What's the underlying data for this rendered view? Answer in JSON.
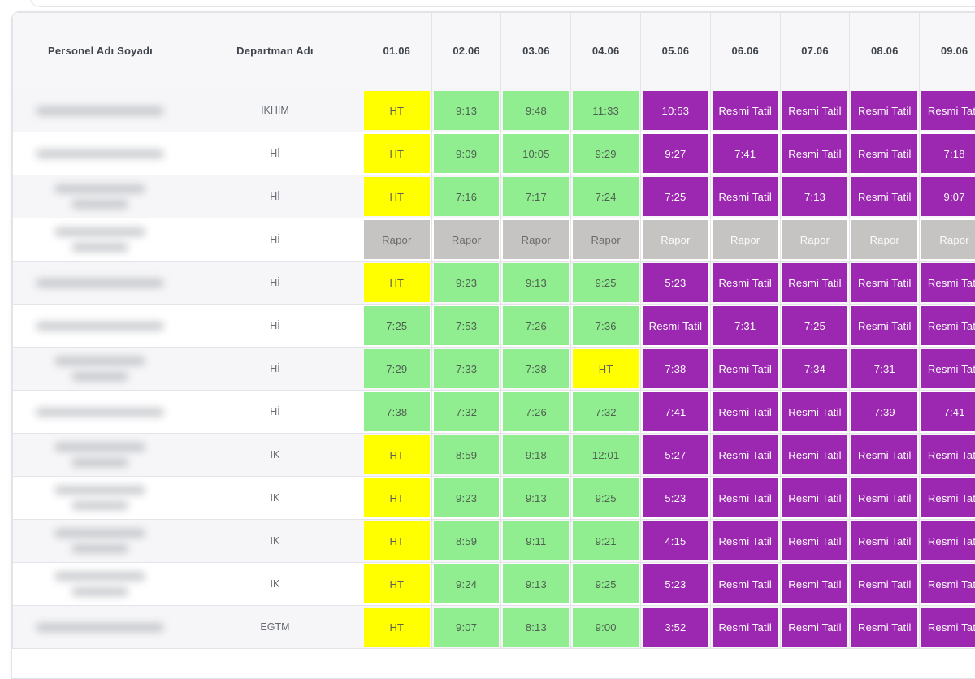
{
  "table": {
    "columns": {
      "name": "Personel Adı Soyadı",
      "department": "Departman Adı",
      "dates": [
        "01.06",
        "02.06",
        "03.06",
        "04.06",
        "05.06",
        "06.06",
        "07.06",
        "08.06",
        "09.06"
      ]
    },
    "status_colors": {
      "present": "#90ee90",
      "half_day": "#ffff00",
      "holiday": "#9c27b0",
      "report": "#c6c3c3",
      "header_bg": "#f7f7f9",
      "stripe_bg": "#f6f6f8"
    },
    "labels": {
      "half_day": "HT",
      "holiday": "Resmi Tatil",
      "report": "Rapor"
    },
    "rows": [
      {
        "name_redacted": true,
        "name_lines": 1,
        "department": "IKHIM",
        "cells": [
          {
            "text": "HT",
            "status": "half"
          },
          {
            "text": "9:13",
            "status": "present"
          },
          {
            "text": "9:48",
            "status": "present"
          },
          {
            "text": "11:33",
            "status": "present"
          },
          {
            "text": "10:53",
            "status": "holiday"
          },
          {
            "text": "Resmi Tatil",
            "status": "holiday"
          },
          {
            "text": "Resmi Tatil",
            "status": "holiday"
          },
          {
            "text": "Resmi Tatil",
            "status": "holiday"
          },
          {
            "text": "Resmi Tatil",
            "status": "holiday"
          }
        ]
      },
      {
        "name_redacted": true,
        "name_lines": 1,
        "department": "Hİ",
        "cells": [
          {
            "text": "HT",
            "status": "half"
          },
          {
            "text": "9:09",
            "status": "present"
          },
          {
            "text": "10:05",
            "status": "present"
          },
          {
            "text": "9:29",
            "status": "present"
          },
          {
            "text": "9:27",
            "status": "holiday"
          },
          {
            "text": "7:41",
            "status": "holiday"
          },
          {
            "text": "Resmi Tatil",
            "status": "holiday"
          },
          {
            "text": "Resmi Tatil",
            "status": "holiday"
          },
          {
            "text": "7:18",
            "status": "holiday"
          }
        ]
      },
      {
        "name_redacted": true,
        "name_lines": 2,
        "department": "Hİ",
        "cells": [
          {
            "text": "HT",
            "status": "half"
          },
          {
            "text": "7:16",
            "status": "present"
          },
          {
            "text": "7:17",
            "status": "present"
          },
          {
            "text": "7:24",
            "status": "present"
          },
          {
            "text": "7:25",
            "status": "holiday"
          },
          {
            "text": "Resmi Tatil",
            "status": "holiday"
          },
          {
            "text": "7:13",
            "status": "holiday"
          },
          {
            "text": "Resmi Tatil",
            "status": "holiday"
          },
          {
            "text": "9:07",
            "status": "holiday"
          }
        ]
      },
      {
        "name_redacted": true,
        "name_lines": 2,
        "department": "Hİ",
        "cells": [
          {
            "text": "Rapor",
            "status": "report"
          },
          {
            "text": "Rapor",
            "status": "report"
          },
          {
            "text": "Rapor",
            "status": "report"
          },
          {
            "text": "Rapor",
            "status": "report"
          },
          {
            "text": "Rapor",
            "status": "report-white"
          },
          {
            "text": "Rapor",
            "status": "report-white"
          },
          {
            "text": "Rapor",
            "status": "report-white"
          },
          {
            "text": "Rapor",
            "status": "report-white"
          },
          {
            "text": "Rapor",
            "status": "report-white"
          }
        ]
      },
      {
        "name_redacted": true,
        "name_lines": 1,
        "department": "Hİ",
        "cells": [
          {
            "text": "HT",
            "status": "half"
          },
          {
            "text": "9:23",
            "status": "present"
          },
          {
            "text": "9:13",
            "status": "present"
          },
          {
            "text": "9:25",
            "status": "present"
          },
          {
            "text": "5:23",
            "status": "holiday"
          },
          {
            "text": "Resmi Tatil",
            "status": "holiday"
          },
          {
            "text": "Resmi Tatil",
            "status": "holiday"
          },
          {
            "text": "Resmi Tatil",
            "status": "holiday"
          },
          {
            "text": "Resmi Tatil",
            "status": "holiday"
          }
        ]
      },
      {
        "name_redacted": true,
        "name_lines": 1,
        "department": "Hİ",
        "cells": [
          {
            "text": "7:25",
            "status": "present"
          },
          {
            "text": "7:53",
            "status": "present"
          },
          {
            "text": "7:26",
            "status": "present"
          },
          {
            "text": "7:36",
            "status": "present"
          },
          {
            "text": "Resmi Tatil",
            "status": "holiday"
          },
          {
            "text": "7:31",
            "status": "holiday"
          },
          {
            "text": "7:25",
            "status": "holiday"
          },
          {
            "text": "Resmi Tatil",
            "status": "holiday"
          },
          {
            "text": "Resmi Tatil",
            "status": "holiday"
          }
        ]
      },
      {
        "name_redacted": true,
        "name_lines": 2,
        "department": "Hİ",
        "cells": [
          {
            "text": "7:29",
            "status": "present"
          },
          {
            "text": "7:33",
            "status": "present"
          },
          {
            "text": "7:38",
            "status": "present"
          },
          {
            "text": "HT",
            "status": "half"
          },
          {
            "text": "7:38",
            "status": "holiday"
          },
          {
            "text": "Resmi Tatil",
            "status": "holiday"
          },
          {
            "text": "7:34",
            "status": "holiday"
          },
          {
            "text": "7:31",
            "status": "holiday"
          },
          {
            "text": "Resmi Tatil",
            "status": "holiday"
          }
        ]
      },
      {
        "name_redacted": true,
        "name_lines": 1,
        "department": "Hİ",
        "cells": [
          {
            "text": "7:38",
            "status": "present"
          },
          {
            "text": "7:32",
            "status": "present"
          },
          {
            "text": "7:26",
            "status": "present"
          },
          {
            "text": "7:32",
            "status": "present"
          },
          {
            "text": "7:41",
            "status": "holiday"
          },
          {
            "text": "Resmi Tatil",
            "status": "holiday"
          },
          {
            "text": "Resmi Tatil",
            "status": "holiday"
          },
          {
            "text": "7:39",
            "status": "holiday"
          },
          {
            "text": "7:41",
            "status": "holiday"
          }
        ]
      },
      {
        "name_redacted": true,
        "name_lines": 2,
        "department": "IK",
        "cells": [
          {
            "text": "HT",
            "status": "half"
          },
          {
            "text": "8:59",
            "status": "present"
          },
          {
            "text": "9:18",
            "status": "present"
          },
          {
            "text": "12:01",
            "status": "present"
          },
          {
            "text": "5:27",
            "status": "holiday"
          },
          {
            "text": "Resmi Tatil",
            "status": "holiday"
          },
          {
            "text": "Resmi Tatil",
            "status": "holiday"
          },
          {
            "text": "Resmi Tatil",
            "status": "holiday"
          },
          {
            "text": "Resmi Tatil",
            "status": "holiday"
          }
        ]
      },
      {
        "name_redacted": true,
        "name_lines": 2,
        "department": "IK",
        "cells": [
          {
            "text": "HT",
            "status": "half"
          },
          {
            "text": "9:23",
            "status": "present"
          },
          {
            "text": "9:13",
            "status": "present"
          },
          {
            "text": "9:25",
            "status": "present"
          },
          {
            "text": "5:23",
            "status": "holiday"
          },
          {
            "text": "Resmi Tatil",
            "status": "holiday"
          },
          {
            "text": "Resmi Tatil",
            "status": "holiday"
          },
          {
            "text": "Resmi Tatil",
            "status": "holiday"
          },
          {
            "text": "Resmi Tatil",
            "status": "holiday"
          }
        ]
      },
      {
        "name_redacted": true,
        "name_lines": 2,
        "department": "IK",
        "cells": [
          {
            "text": "HT",
            "status": "half"
          },
          {
            "text": "8:59",
            "status": "present"
          },
          {
            "text": "9:11",
            "status": "present"
          },
          {
            "text": "9:21",
            "status": "present"
          },
          {
            "text": "4:15",
            "status": "holiday"
          },
          {
            "text": "Resmi Tatil",
            "status": "holiday"
          },
          {
            "text": "Resmi Tatil",
            "status": "holiday"
          },
          {
            "text": "Resmi Tatil",
            "status": "holiday"
          },
          {
            "text": "Resmi Tatil",
            "status": "holiday"
          }
        ]
      },
      {
        "name_redacted": true,
        "name_lines": 2,
        "department": "IK",
        "cells": [
          {
            "text": "HT",
            "status": "half"
          },
          {
            "text": "9:24",
            "status": "present"
          },
          {
            "text": "9:13",
            "status": "present"
          },
          {
            "text": "9:25",
            "status": "present"
          },
          {
            "text": "5:23",
            "status": "holiday"
          },
          {
            "text": "Resmi Tatil",
            "status": "holiday"
          },
          {
            "text": "Resmi Tatil",
            "status": "holiday"
          },
          {
            "text": "Resmi Tatil",
            "status": "holiday"
          },
          {
            "text": "Resmi Tatil",
            "status": "holiday"
          }
        ]
      },
      {
        "name_redacted": true,
        "name_lines": 1,
        "department": "EGTM",
        "cells": [
          {
            "text": "HT",
            "status": "half"
          },
          {
            "text": "9:07",
            "status": "present"
          },
          {
            "text": "8:13",
            "status": "present"
          },
          {
            "text": "9:00",
            "status": "present"
          },
          {
            "text": "3:52",
            "status": "holiday"
          },
          {
            "text": "Resmi Tatil",
            "status": "holiday"
          },
          {
            "text": "Resmi Tatil",
            "status": "holiday"
          },
          {
            "text": "Resmi Tatil",
            "status": "holiday"
          },
          {
            "text": "Resmi Tatil",
            "status": "holiday"
          }
        ]
      }
    ]
  }
}
